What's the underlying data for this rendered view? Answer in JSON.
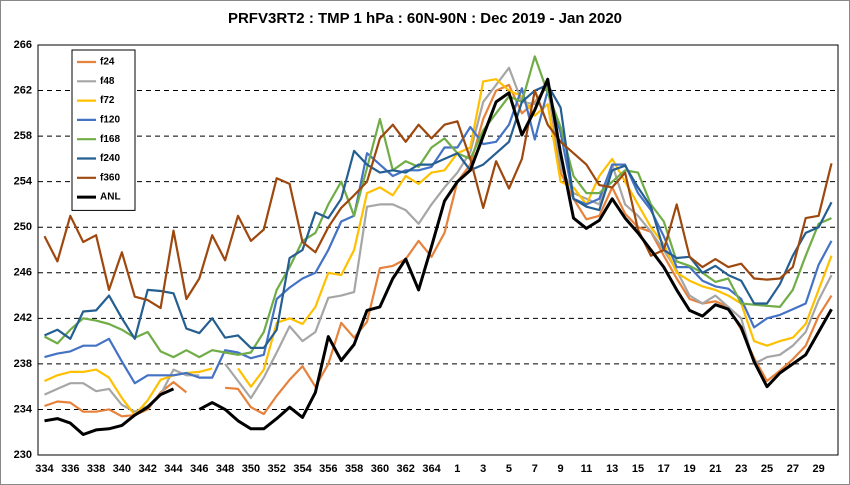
{
  "chart_data": {
    "type": "line",
    "title": "PRFV3RT2 : TMP 1 hPa : 60N-90N : Dec 2019 - Jan 2020",
    "categories": [
      "334",
      null,
      "336",
      null,
      "338",
      null,
      "340",
      null,
      "342",
      null,
      "344",
      null,
      "346",
      null,
      "348",
      null,
      "350",
      null,
      "352",
      null,
      "354",
      null,
      "356",
      null,
      "358",
      null,
      "360",
      null,
      "362",
      null,
      "364",
      null,
      "1",
      null,
      "3",
      null,
      "5",
      null,
      "7",
      null,
      "9",
      null,
      "11",
      null,
      "13",
      null,
      "15",
      null,
      "17",
      null,
      "19",
      null,
      "21",
      null,
      "23",
      null,
      "25",
      null,
      "27",
      null,
      "29",
      null
    ],
    "ylim": [
      230,
      266
    ],
    "yticks": [
      230,
      234,
      238,
      242,
      246,
      250,
      254,
      258,
      262,
      266
    ],
    "grid": true,
    "legend": "upper left",
    "series": [
      {
        "name": "f24",
        "color": "#e6823c",
        "values": [
          234.3,
          234.7,
          234.6,
          233.8,
          233.8,
          234.0,
          233.4,
          233.5,
          234.0,
          235.5,
          236.4,
          235.5,
          null,
          null,
          235.9,
          235.8,
          234.2,
          233.6,
          235.2,
          236.6,
          237.8,
          236.0,
          238.0,
          241.6,
          240.3,
          241.7,
          246.4,
          246.6,
          247.2,
          248.8,
          247.4,
          249.5,
          254.0,
          255.5,
          259.5,
          262.0,
          262.5,
          260.0,
          261.0,
          262.4,
          254.8,
          252.5,
          250.7,
          251.0,
          253.5,
          251.2,
          250.0,
          249.6,
          247.5,
          245.5,
          243.7,
          243.3,
          243.5,
          243.0,
          241.0,
          238.5,
          236.5,
          237.4,
          238.4,
          239.6,
          242.2,
          244.0
        ]
      },
      {
        "name": "f48",
        "color": "#a6a6a6",
        "values": [
          235.3,
          235.8,
          236.3,
          236.3,
          235.6,
          235.8,
          234.4,
          233.8,
          234.3,
          235.3,
          237.5,
          237.0,
          237.0,
          null,
          238.0,
          236.5,
          235.0,
          236.8,
          239.0,
          241.3,
          240.0,
          240.8,
          243.8,
          244.0,
          244.3,
          251.8,
          252.0,
          252.0,
          251.5,
          250.3,
          252.0,
          253.5,
          254.8,
          256.6,
          261.0,
          262.5,
          264.0,
          261.0,
          260.8,
          262.5,
          255.3,
          253.0,
          252.5,
          252.0,
          255.5,
          252.0,
          251.0,
          249.6,
          248.0,
          246.2,
          244.0,
          243.3,
          244.0,
          243.0,
          242.0,
          238.0,
          238.6,
          238.8,
          239.6,
          240.8,
          243.6,
          245.8
        ]
      },
      {
        "name": "f72",
        "color": "#ffc000",
        "values": [
          236.5,
          237.0,
          237.3,
          237.3,
          237.5,
          236.8,
          235.0,
          233.5,
          234.8,
          236.6,
          237.0,
          237.2,
          237.3,
          237.6,
          null,
          237.6,
          236.0,
          237.5,
          241.6,
          242.0,
          241.5,
          243.0,
          246.0,
          245.8,
          248.0,
          253.0,
          253.5,
          252.8,
          254.5,
          253.8,
          254.8,
          255.0,
          256.5,
          257.0,
          262.8,
          263.0,
          262.0,
          261.5,
          259.8,
          260.8,
          254.0,
          253.5,
          252.0,
          254.5,
          256.0,
          254.0,
          252.0,
          250.0,
          248.5,
          246.0,
          245.3,
          244.8,
          244.5,
          244.0,
          243.3,
          240.0,
          239.6,
          240.0,
          240.3,
          241.5,
          244.5,
          247.5
        ]
      },
      {
        "name": "f120",
        "color": "#4472c4",
        "values": [
          238.6,
          238.9,
          239.1,
          239.6,
          239.6,
          240.2,
          238.2,
          236.3,
          237.0,
          237.0,
          237.0,
          237.2,
          236.8,
          236.8,
          239.2,
          239.0,
          238.5,
          238.8,
          243.7,
          244.7,
          245.5,
          246.0,
          248.0,
          250.5,
          251.0,
          256.5,
          255.5,
          254.5,
          255.0,
          255.0,
          255.3,
          257.0,
          257.0,
          258.8,
          257.3,
          257.5,
          259.0,
          262.2,
          257.7,
          262.0,
          258.3,
          252.5,
          252.0,
          252.5,
          255.5,
          255.5,
          253.0,
          251.5,
          249.2,
          246.5,
          246.5,
          245.3,
          244.8,
          244.6,
          243.7,
          241.2,
          242.0,
          242.3,
          242.8,
          243.3,
          246.7,
          248.8
        ]
      },
      {
        "name": "f168",
        "color": "#70ad47",
        "values": [
          240.4,
          239.8,
          241.0,
          242.0,
          241.8,
          241.5,
          241.0,
          240.3,
          240.8,
          239.1,
          238.6,
          239.2,
          238.6,
          239.2,
          239.0,
          238.8,
          239.0,
          240.8,
          244.5,
          246.5,
          248.8,
          249.5,
          252.0,
          254.0,
          251.0,
          255.2,
          259.5,
          255.0,
          255.8,
          255.3,
          257.0,
          257.8,
          256.5,
          256.0,
          258.5,
          260.0,
          261.5,
          261.0,
          265.0,
          261.8,
          258.8,
          254.5,
          253.0,
          253.0,
          254.0,
          255.0,
          254.8,
          252.0,
          250.5,
          247.0,
          246.6,
          246.0,
          245.2,
          245.5,
          243.3,
          243.2,
          243.1,
          243.0,
          244.5,
          247.5,
          250.3,
          250.8
        ]
      },
      {
        "name": "f240",
        "color": "#255e91",
        "values": [
          240.5,
          241.0,
          240.2,
          242.6,
          242.7,
          244.0,
          242.0,
          240.2,
          244.5,
          244.4,
          244.2,
          241.1,
          240.7,
          242.0,
          240.3,
          240.5,
          239.4,
          239.4,
          241.0,
          247.3,
          248.0,
          251.3,
          250.8,
          252.5,
          256.7,
          255.5,
          254.8,
          255.0,
          254.8,
          255.5,
          255.5,
          256.0,
          256.5,
          255.0,
          255.5,
          256.5,
          257.5,
          261.0,
          262.0,
          262.5,
          260.5,
          252.5,
          251.8,
          251.5,
          255.0,
          255.4,
          253.5,
          251.8,
          248.0,
          247.3,
          247.4,
          246.0,
          246.6,
          245.8,
          245.3,
          243.3,
          243.3,
          245.0,
          247.5,
          249.5,
          250.0,
          252.2
        ]
      },
      {
        "name": "f360",
        "color": "#9e480e",
        "values": [
          249.2,
          247.0,
          251.0,
          248.7,
          249.3,
          244.5,
          247.8,
          243.9,
          243.6,
          242.9,
          249.7,
          243.7,
          245.5,
          249.3,
          247.1,
          251.0,
          248.8,
          249.8,
          254.3,
          253.8,
          248.7,
          247.8,
          250.0,
          251.7,
          252.8,
          254.0,
          257.8,
          259.0,
          257.5,
          259.0,
          257.8,
          259.0,
          259.3,
          256.0,
          251.7,
          255.8,
          253.4,
          256.0,
          262.0,
          259.0,
          257.5,
          256.5,
          255.5,
          253.7,
          253.5,
          254.8,
          249.8,
          247.5,
          248.0,
          252.0,
          247.4,
          246.5,
          247.2,
          246.5,
          246.8,
          245.5,
          245.4,
          245.5,
          246.5,
          250.8,
          251.0,
          255.6
        ]
      },
      {
        "name": "ANL",
        "color": "#000000",
        "values": [
          233.0,
          233.2,
          232.8,
          231.8,
          232.2,
          232.3,
          232.6,
          233.5,
          234.2,
          235.3,
          235.8,
          null,
          234.0,
          234.6,
          234.0,
          233.0,
          232.3,
          232.3,
          233.2,
          234.2,
          233.3,
          235.5,
          240.4,
          238.3,
          239.7,
          242.7,
          243.0,
          245.5,
          247.2,
          244.5,
          248.3,
          252.3,
          254.0,
          255.0,
          258.0,
          261.0,
          261.8,
          258.1,
          260.3,
          263.0,
          256.5,
          250.8,
          249.9,
          250.6,
          252.5,
          250.8,
          249.5,
          248.0,
          246.5,
          244.5,
          242.7,
          242.2,
          243.2,
          242.8,
          241.2,
          238.2,
          236.0,
          237.2,
          238.0,
          238.8,
          240.8,
          242.8
        ]
      }
    ]
  }
}
